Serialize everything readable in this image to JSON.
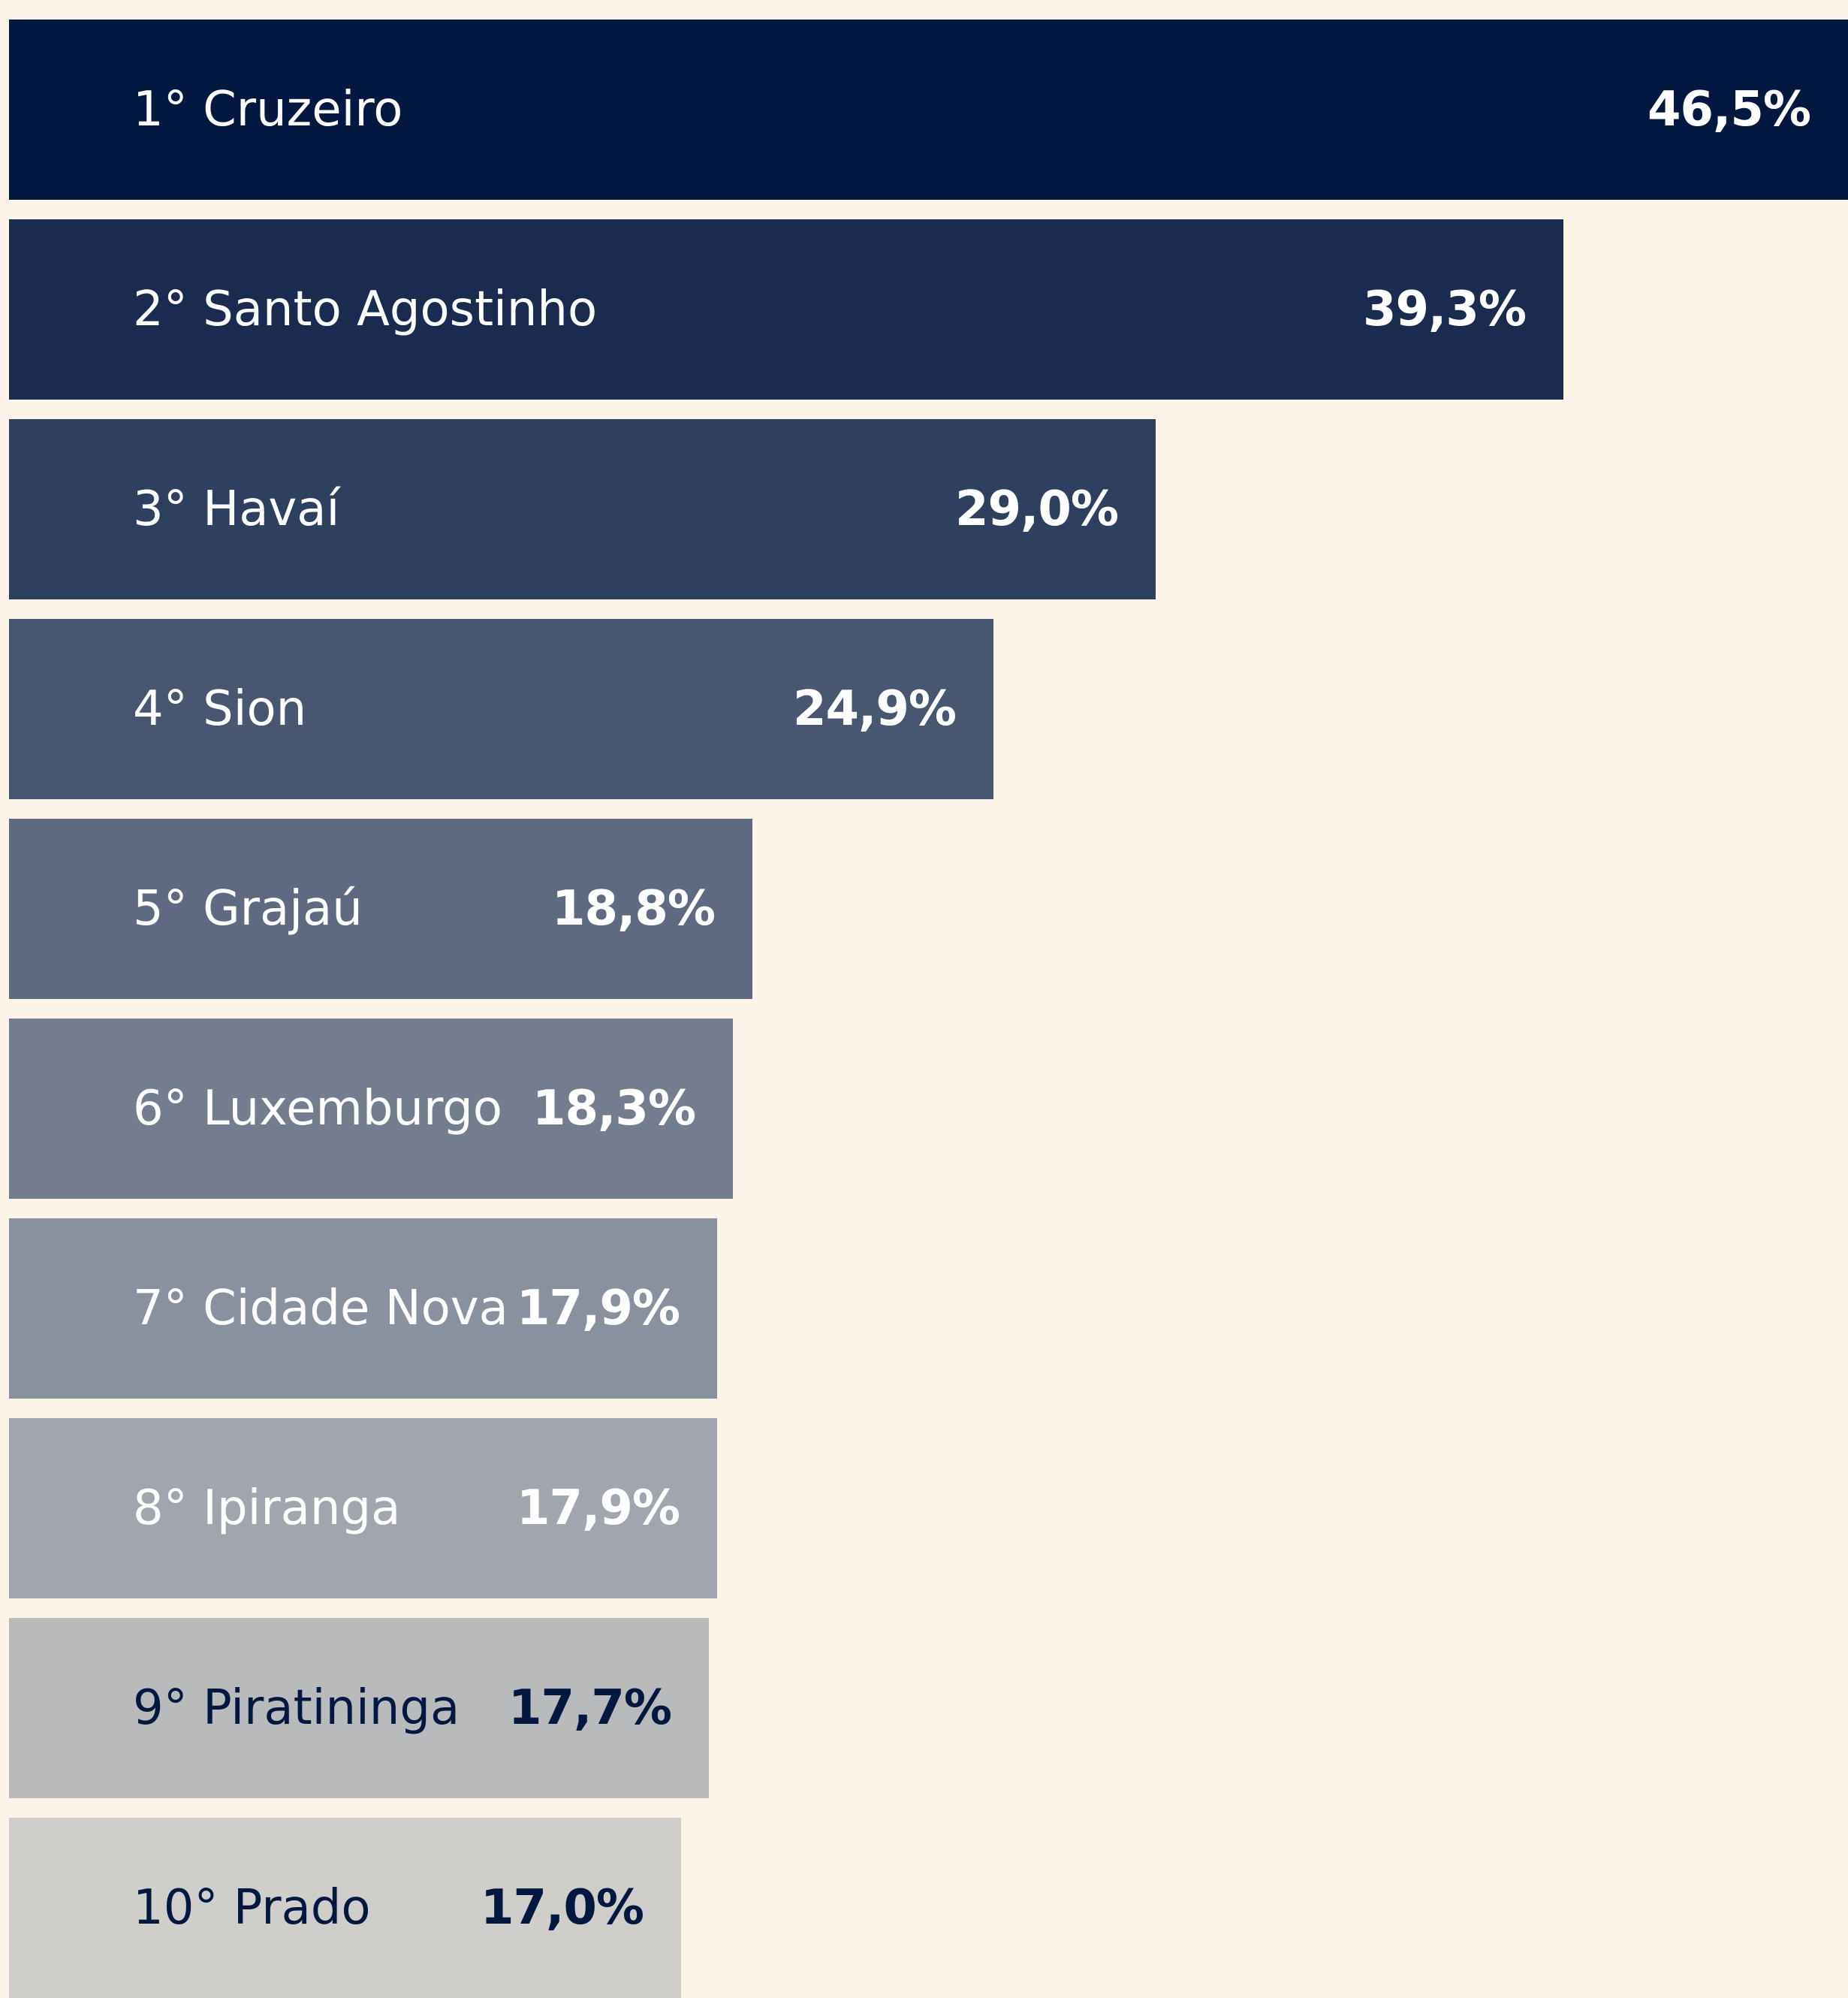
{
  "chart_data": {
    "type": "bar",
    "orientation": "horizontal",
    "title": "",
    "xlabel": "",
    "ylabel": "",
    "grid": false,
    "legend": "none",
    "xlim": [
      0,
      46.5
    ],
    "categories": [
      "1° Cruzeiro",
      "2° Santo Agostinho",
      "3° Havaí",
      "4° Sion",
      "5° Grajaú",
      "6° Luxemburgo",
      "7° Cidade Nova",
      "8° Ipiranga",
      "9° Piratininga",
      "10° Prado"
    ],
    "values": [
      46.5,
      39.3,
      29.0,
      24.9,
      18.8,
      18.3,
      17.9,
      17.9,
      17.7,
      17.0
    ],
    "value_labels": [
      "46,5%",
      "39,3%",
      "29,0%",
      "24,9%",
      "18,8%",
      "18,3%",
      "17,9%",
      "17,9%",
      "17,7%",
      "17,0%"
    ],
    "bar_colors": [
      "#021840",
      "#1b2b50",
      "#2f3f5e",
      "#48566f",
      "#5f6a80",
      "#737d8e",
      "#8a919e",
      "#a1a6ae",
      "#b8babc",
      "#cfcecb"
    ],
    "text_colors": [
      "#ffffff",
      "#ffffff",
      "#ffffff",
      "#ffffff",
      "#ffffff",
      "#ffffff",
      "#ffffff",
      "#ffffff",
      "#021840",
      "#021840"
    ]
  }
}
